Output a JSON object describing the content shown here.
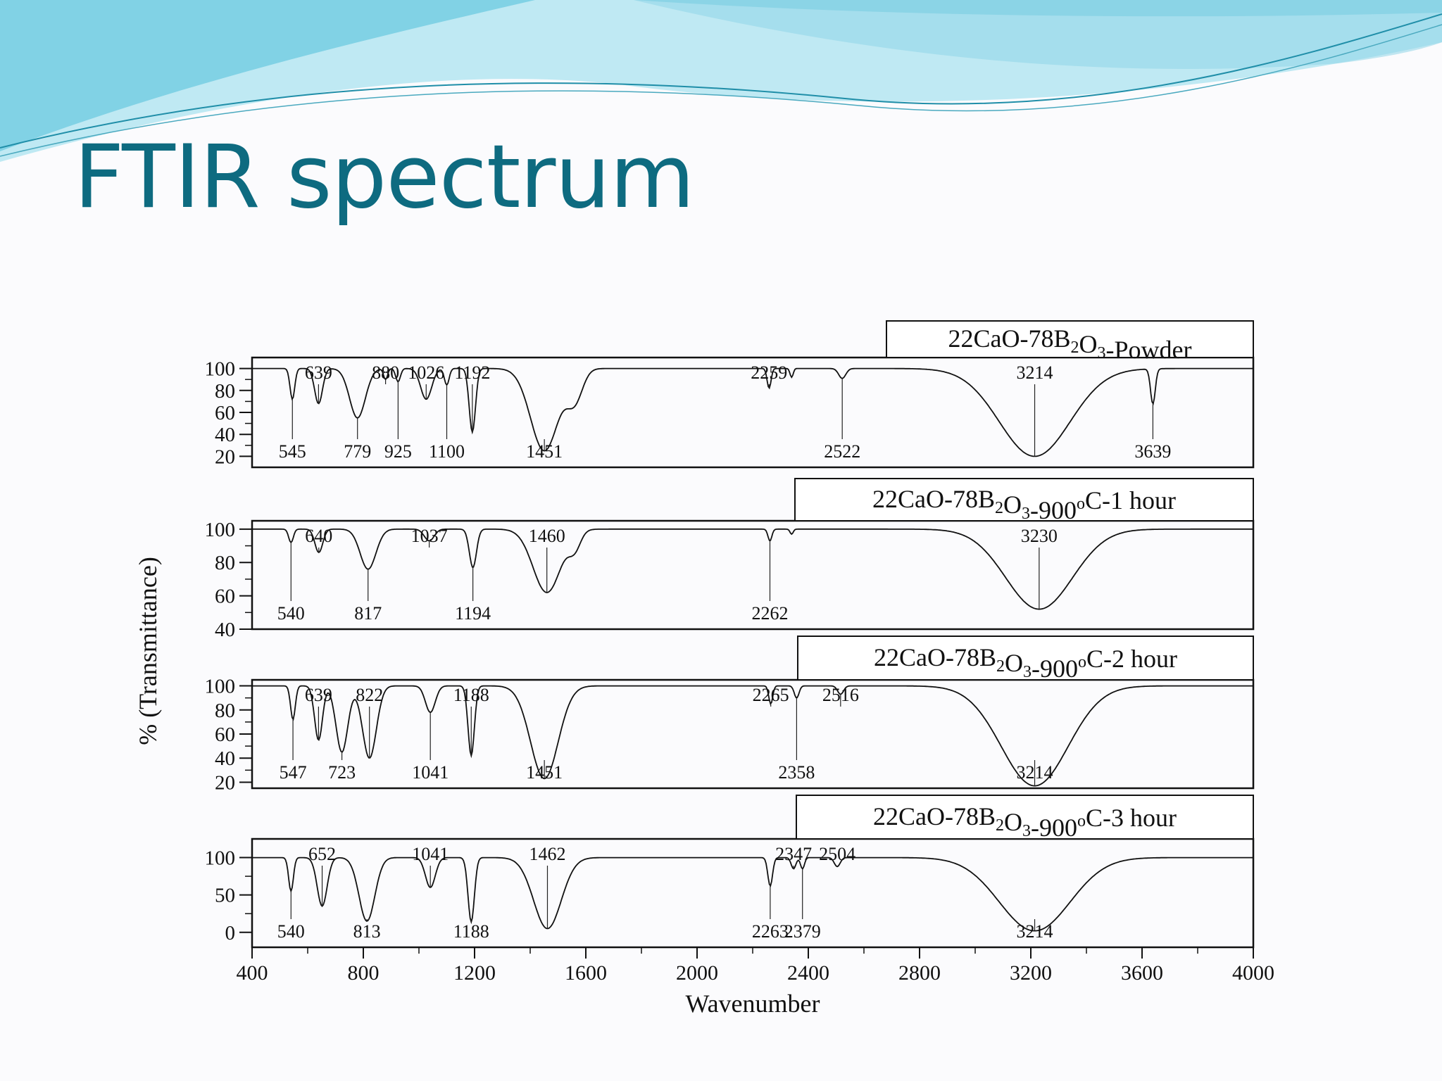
{
  "slide": {
    "title": "FTIR spectrum"
  },
  "theme": {
    "title_color": "#0e6b80",
    "wave_light": "#bfe9f3",
    "wave_mid": "#7fd0e3",
    "wave_dark": "#33b5d0"
  },
  "chart_data": {
    "type": "line",
    "xlabel": "Wavenumber",
    "ylabel": "% (Transmittance)",
    "xlim": [
      400,
      4000
    ],
    "xticks": [
      400,
      800,
      1200,
      1600,
      2000,
      2400,
      2800,
      3200,
      3600,
      4000
    ],
    "grid": false,
    "panels": [
      {
        "name": "22CaO-78B2O3-Powder",
        "label_parts": [
          {
            "t": "22CaO-78B"
          },
          {
            "t": "2",
            "sub": true
          },
          {
            "t": "O"
          },
          {
            "t": "3",
            "sub": true
          },
          {
            "t": "-Powder"
          }
        ],
        "ylim": [
          10,
          110
        ],
        "yticks": [
          20,
          40,
          60,
          80,
          100
        ],
        "baseline": 100,
        "features": [
          [
            545,
            72,
            12
          ],
          [
            639,
            68,
            20
          ],
          [
            779,
            55,
            40
          ],
          [
            880,
            90,
            10
          ],
          [
            925,
            88,
            12
          ],
          [
            1026,
            72,
            28
          ],
          [
            1100,
            85,
            12
          ],
          [
            1192,
            42,
            16
          ],
          [
            1451,
            25,
            70
          ],
          [
            1560,
            72,
            40
          ],
          [
            2259,
            82,
            10
          ],
          [
            2340,
            92,
            8
          ],
          [
            2522,
            91,
            18
          ],
          [
            3214,
            20,
            180
          ],
          [
            3639,
            68,
            12
          ]
        ],
        "peak_labels": [
          {
            "text": "545",
            "x": 545
          },
          {
            "text": "639",
            "x": 639
          },
          {
            "text": "779",
            "x": 779
          },
          {
            "text": "880",
            "x": 880
          },
          {
            "text": "925",
            "x": 925
          },
          {
            "text": "1026",
            "x": 1026
          },
          {
            "text": "1100",
            "x": 1100
          },
          {
            "text": "1192",
            "x": 1192
          },
          {
            "text": "1451",
            "x": 1451
          },
          {
            "text": "2259",
            "x": 2259
          },
          {
            "text": "2522",
            "x": 2522
          },
          {
            "text": "3214",
            "x": 3214
          },
          {
            "text": "3639",
            "x": 3639
          }
        ]
      },
      {
        "name": "22CaO-78B2O3-900°C-1 hour",
        "label_parts": [
          {
            "t": "22CaO-78B"
          },
          {
            "t": "2",
            "sub": true
          },
          {
            "t": "O"
          },
          {
            "t": "3",
            "sub": true
          },
          {
            "t": "-900"
          },
          {
            "t": "o",
            "sup": true
          },
          {
            "t": "C-1 hour"
          }
        ],
        "ylim": [
          40,
          105
        ],
        "yticks": [
          40,
          60,
          80,
          100
        ],
        "baseline": 100,
        "features": [
          [
            540,
            92,
            12
          ],
          [
            640,
            86,
            20
          ],
          [
            817,
            76,
            40
          ],
          [
            1037,
            93,
            25
          ],
          [
            1194,
            77,
            18
          ],
          [
            1460,
            62,
            70
          ],
          [
            1560,
            90,
            30
          ],
          [
            2262,
            93,
            10
          ],
          [
            2340,
            97,
            8
          ],
          [
            3230,
            52,
            170
          ]
        ],
        "peak_labels": [
          {
            "text": "540",
            "x": 540
          },
          {
            "text": "640",
            "x": 640
          },
          {
            "text": "817",
            "x": 817
          },
          {
            "text": "1037",
            "x": 1037
          },
          {
            "text": "1194",
            "x": 1194
          },
          {
            "text": "1460",
            "x": 1460
          },
          {
            "text": "2262",
            "x": 2262
          },
          {
            "text": "3230",
            "x": 3230
          }
        ]
      },
      {
        "name": "22CaO-78B2O3-900°C-2 hour",
        "label_parts": [
          {
            "t": "22CaO-78B"
          },
          {
            "t": "2",
            "sub": true
          },
          {
            "t": "O"
          },
          {
            "t": "3",
            "sub": true
          },
          {
            "t": "-900"
          },
          {
            "t": "o",
            "sup": true
          },
          {
            "t": "C-2 hour"
          }
        ],
        "ylim": [
          15,
          105
        ],
        "yticks": [
          20,
          40,
          60,
          80,
          100
        ],
        "baseline": 100,
        "features": [
          [
            547,
            72,
            12
          ],
          [
            639,
            55,
            20
          ],
          [
            723,
            45,
            30
          ],
          [
            822,
            40,
            35
          ],
          [
            1041,
            78,
            25
          ],
          [
            1188,
            42,
            16
          ],
          [
            1451,
            23,
            70
          ],
          [
            2265,
            85,
            10
          ],
          [
            2358,
            90,
            12
          ],
          [
            2516,
            93,
            15
          ],
          [
            3214,
            17,
            170
          ]
        ],
        "peak_labels": [
          {
            "text": "547",
            "x": 547
          },
          {
            "text": "639",
            "x": 639
          },
          {
            "text": "723",
            "x": 723
          },
          {
            "text": "822",
            "x": 822
          },
          {
            "text": "1041",
            "x": 1041
          },
          {
            "text": "1188",
            "x": 1188
          },
          {
            "text": "1451",
            "x": 1451
          },
          {
            "text": "2265",
            "x": 2265
          },
          {
            "text": "2358",
            "x": 2358
          },
          {
            "text": "2516",
            "x": 2516
          },
          {
            "text": "3214",
            "x": 3214
          }
        ]
      },
      {
        "name": "22CaO-78B2O3-900°C-3 hour",
        "label_parts": [
          {
            "t": "22CaO-78B"
          },
          {
            "t": "2",
            "sub": true
          },
          {
            "t": "O"
          },
          {
            "t": "3",
            "sub": true
          },
          {
            "t": "-900"
          },
          {
            "t": "o",
            "sup": true
          },
          {
            "t": "C-3 hour"
          }
        ],
        "ylim": [
          -20,
          125
        ],
        "yticks": [
          0,
          50,
          100
        ],
        "baseline": 100,
        "features": [
          [
            540,
            55,
            12
          ],
          [
            652,
            35,
            25
          ],
          [
            813,
            15,
            40
          ],
          [
            1041,
            60,
            25
          ],
          [
            1188,
            14,
            16
          ],
          [
            1462,
            5,
            70
          ],
          [
            2263,
            62,
            12
          ],
          [
            2347,
            85,
            12
          ],
          [
            2379,
            85,
            10
          ],
          [
            2504,
            88,
            15
          ],
          [
            3214,
            2,
            180
          ]
        ],
        "peak_labels": [
          {
            "text": "540",
            "x": 540
          },
          {
            "text": "652",
            "x": 652
          },
          {
            "text": "813",
            "x": 813
          },
          {
            "text": "1041",
            "x": 1041
          },
          {
            "text": "1188",
            "x": 1188
          },
          {
            "text": "1462",
            "x": 1462
          },
          {
            "text": "2263",
            "x": 2263
          },
          {
            "text": "2347",
            "x": 2347
          },
          {
            "text": "2379",
            "x": 2379
          },
          {
            "text": "2504",
            "x": 2504
          },
          {
            "text": "3214",
            "x": 3214
          }
        ]
      }
    ]
  }
}
